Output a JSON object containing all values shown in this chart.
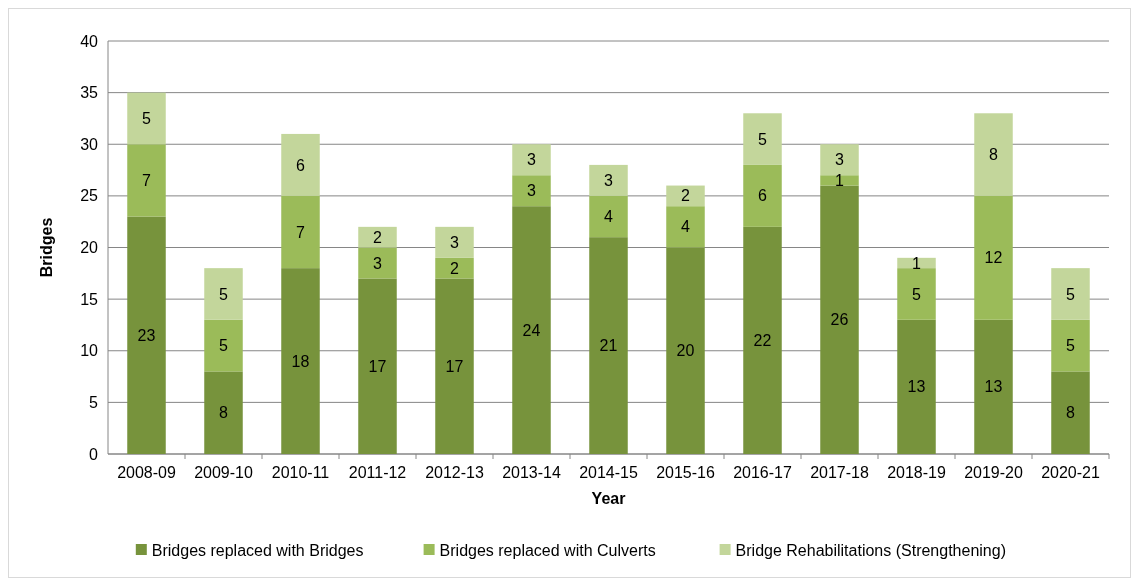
{
  "chart_data": {
    "type": "bar",
    "stacked": true,
    "xlabel": "Year",
    "ylabel": "Bridges",
    "categories": [
      "2008-09",
      "2009-10",
      "2010-11",
      "2011-12",
      "2012-13",
      "2013-14",
      "2014-15",
      "2015-16",
      "2016-17",
      "2017-18",
      "2018-19",
      "2019-20",
      "2020-21"
    ],
    "series": [
      {
        "name": "Bridges replaced with Bridges",
        "color": "#77933c",
        "values": [
          23,
          8,
          18,
          17,
          17,
          24,
          21,
          20,
          22,
          26,
          13,
          13,
          8
        ]
      },
      {
        "name": "Bridges replaced with Culverts",
        "color": "#9bbb59",
        "values": [
          7,
          5,
          7,
          3,
          2,
          3,
          4,
          4,
          6,
          1,
          5,
          12,
          5
        ]
      },
      {
        "name": "Bridge Rehabilitations (Strengthening)",
        "color": "#c3d69b",
        "values": [
          5,
          5,
          6,
          2,
          3,
          3,
          3,
          2,
          5,
          3,
          1,
          8,
          5
        ]
      }
    ],
    "ylim": [
      0,
      40
    ],
    "yticks": [
      0,
      5,
      10,
      15,
      20,
      25,
      30,
      35,
      40
    ],
    "grid": "y",
    "legend": "bottom",
    "data_labels": true
  }
}
